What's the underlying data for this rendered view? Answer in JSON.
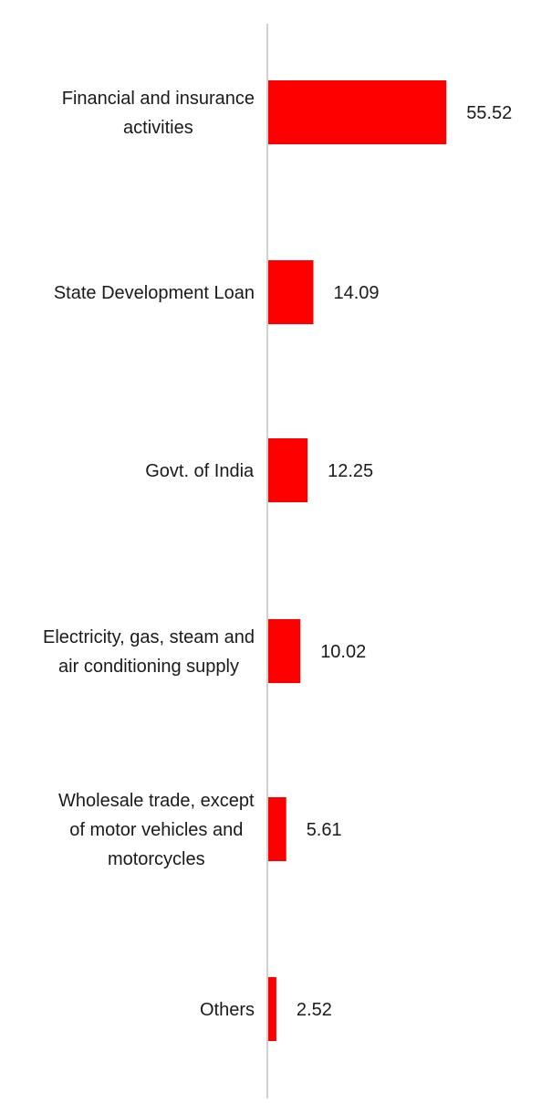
{
  "chart_data": {
    "type": "bar",
    "orientation": "horizontal",
    "categories": [
      [
        "Financial and insurance",
        "activities"
      ],
      [
        "State Development Loan"
      ],
      [
        "Govt. of India"
      ],
      [
        "Electricity, gas, steam and",
        "air conditioning supply"
      ],
      [
        "Wholesale trade, except",
        "of motor vehicles and",
        "motorcycles"
      ],
      [
        "Others"
      ]
    ],
    "values": [
      55.52,
      14.09,
      12.25,
      10.02,
      5.61,
      2.52
    ],
    "value_labels": [
      "55.52",
      "14.09",
      "12.25",
      "10.02",
      "5.61",
      "2.52"
    ],
    "xlim": [
      0,
      60
    ],
    "title": "",
    "xlabel": "",
    "ylabel": "",
    "grid": false,
    "legend": "none",
    "colors": {
      "bar": "#ff0000",
      "axis": "#d0d0d0",
      "text": "#1a1a1a"
    }
  }
}
